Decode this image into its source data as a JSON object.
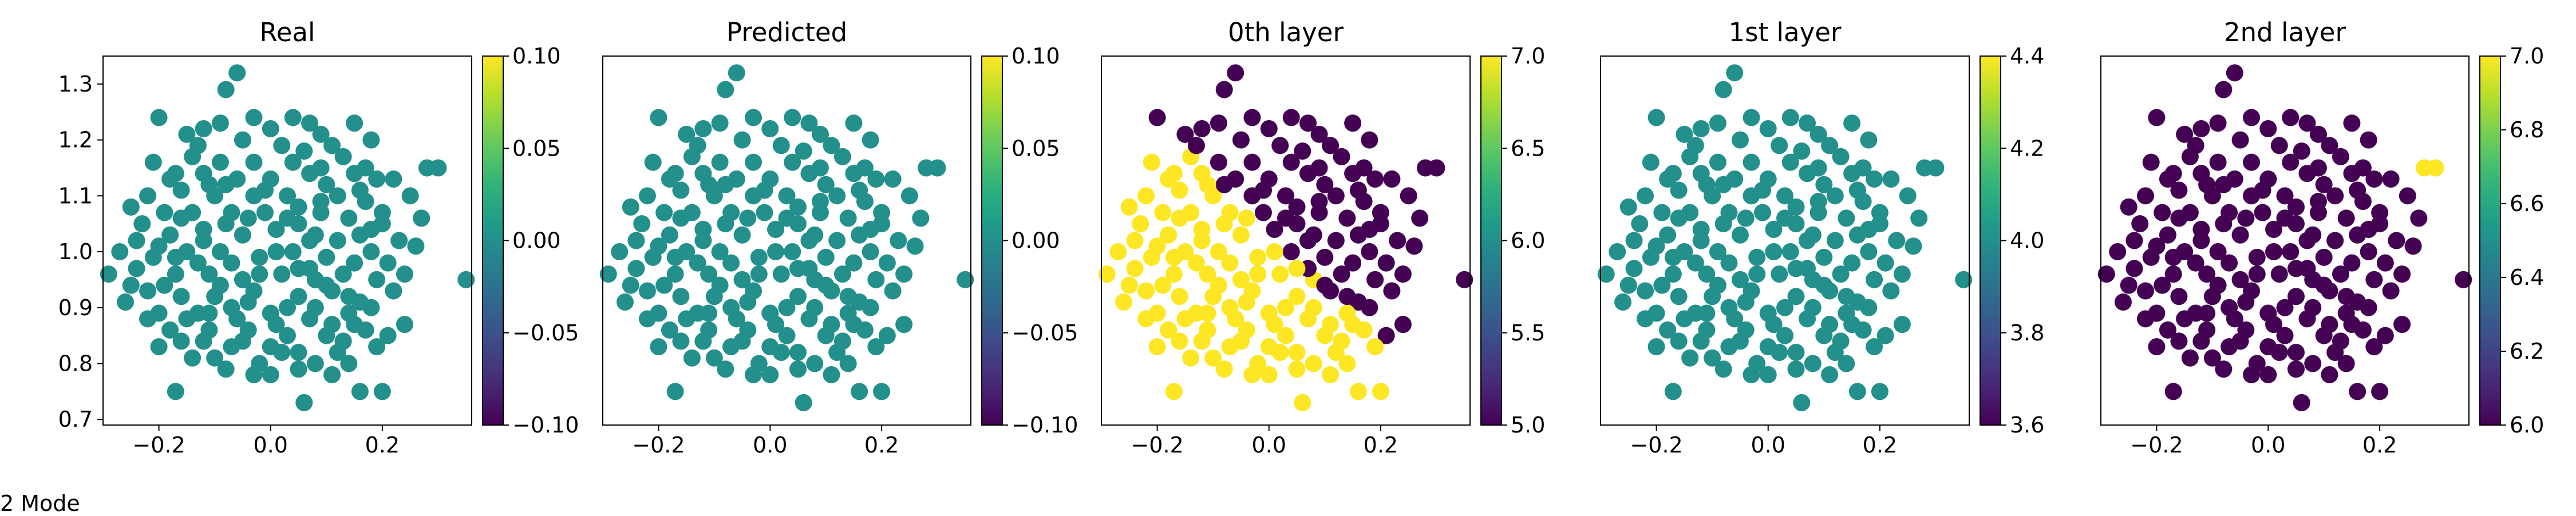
{
  "figure_caption": "2 Mode",
  "colors": {
    "viridis_dark": "#440154",
    "viridis_mid": "#21918c",
    "viridis_yellow": "#fde725",
    "axis": "#000000"
  },
  "chart_data": [
    {
      "type": "scatter",
      "title": "Real",
      "xlim": [
        -0.3,
        0.36
      ],
      "ylim": [
        0.69,
        1.35
      ],
      "xticks": [
        -0.2,
        0.0,
        0.2
      ],
      "xtick_labels": [
        "−0.2",
        "0.0",
        "0.2"
      ],
      "yticks": [
        0.7,
        0.8,
        0.9,
        1.0,
        1.1,
        1.2,
        1.3
      ],
      "ytick_labels": [
        "0.7",
        "0.8",
        "0.9",
        "1.0",
        "1.1",
        "1.2",
        "1.3"
      ],
      "colorbar": {
        "range": [
          -0.1,
          0.1
        ],
        "ticks": [
          -0.1,
          -0.05,
          0.0,
          0.05,
          0.1
        ],
        "tick_labels": [
          "−0.10",
          "−0.05",
          "0.00",
          "0.05",
          "0.10"
        ]
      },
      "coloring": "uniform",
      "points_value": 0.0
    },
    {
      "type": "scatter",
      "title": "Predicted",
      "xlim": [
        -0.3,
        0.36
      ],
      "ylim": [
        0.69,
        1.35
      ],
      "xticks": [
        -0.2,
        0.0,
        0.2
      ],
      "xtick_labels": [
        "−0.2",
        "0.0",
        "0.2"
      ],
      "yticks": [],
      "ytick_labels": [],
      "colorbar": {
        "range": [
          -0.1,
          0.1
        ],
        "ticks": [
          -0.1,
          -0.05,
          0.0,
          0.05,
          0.1
        ],
        "tick_labels": [
          "−0.10",
          "−0.05",
          "0.00",
          "0.05",
          "0.10"
        ]
      },
      "coloring": "uniform",
      "points_value": 0.0
    },
    {
      "type": "scatter",
      "title": "0th layer",
      "xlim": [
        -0.3,
        0.36
      ],
      "ylim": [
        0.69,
        1.35
      ],
      "xticks": [
        -0.2,
        0.0,
        0.2
      ],
      "xtick_labels": [
        "−0.2",
        "0.0",
        "0.2"
      ],
      "yticks": [],
      "ytick_labels": [],
      "colorbar": {
        "range": [
          5.0,
          7.0
        ],
        "ticks": [
          5.0,
          5.5,
          6.0,
          6.5,
          7.0
        ],
        "tick_labels": [
          "5.0",
          "5.5",
          "6.0",
          "6.5",
          "7.0"
        ]
      },
      "coloring": "split",
      "split_rule": "x + y > 1.03",
      "value_above": 5.0,
      "value_below": 7.0
    },
    {
      "type": "scatter",
      "title": "1st layer",
      "xlim": [
        -0.3,
        0.36
      ],
      "ylim": [
        0.69,
        1.35
      ],
      "xticks": [
        -0.2,
        0.0,
        0.2
      ],
      "xtick_labels": [
        "−0.2",
        "0.0",
        "0.2"
      ],
      "yticks": [],
      "ytick_labels": [],
      "colorbar": {
        "range": [
          3.6,
          4.4
        ],
        "ticks": [
          3.6,
          3.8,
          4.0,
          4.2,
          4.4
        ],
        "tick_labels": [
          "3.6",
          "3.8",
          "4.0",
          "4.2",
          "4.4"
        ]
      },
      "coloring": "uniform",
      "points_value": 4.0
    },
    {
      "type": "scatter",
      "title": "2nd layer",
      "xlim": [
        -0.3,
        0.36
      ],
      "ylim": [
        0.69,
        1.35
      ],
      "xticks": [
        -0.2,
        0.0,
        0.2
      ],
      "xtick_labels": [
        "−0.2",
        "0.0",
        "0.2"
      ],
      "yticks": [],
      "ytick_labels": [],
      "colorbar": {
        "range": [
          6.0,
          7.0
        ],
        "ticks": [
          6.0,
          6.2,
          6.4,
          6.6,
          6.8,
          7.0
        ],
        "tick_labels": [
          "6.0",
          "6.2",
          "6.4",
          "6.6",
          "6.8",
          "7.0"
        ]
      },
      "coloring": "highlight",
      "highlight_points": [
        [
          0.16,
          1.21
        ],
        [
          0.28,
          1.15
        ],
        [
          0.3,
          1.15
        ]
      ],
      "value_default": 6.0,
      "value_highlight": 7.0
    }
  ],
  "scatter_points": [
    [
      -0.06,
      1.32
    ],
    [
      -0.08,
      1.29
    ],
    [
      -0.2,
      1.24
    ],
    [
      -0.09,
      1.23
    ],
    [
      -0.03,
      1.24
    ],
    [
      0.04,
      1.24
    ],
    [
      0.07,
      1.23
    ],
    [
      0.15,
      1.23
    ],
    [
      -0.15,
      1.21
    ],
    [
      -0.12,
      1.22
    ],
    [
      0.0,
      1.22
    ],
    [
      0.09,
      1.21
    ],
    [
      0.18,
      1.2
    ],
    [
      -0.05,
      1.2
    ],
    [
      0.11,
      1.19
    ],
    [
      0.02,
      1.19
    ],
    [
      -0.21,
      1.16
    ],
    [
      -0.14,
      1.17
    ],
    [
      -0.09,
      1.16
    ],
    [
      0.04,
      1.16
    ],
    [
      0.13,
      1.17
    ],
    [
      0.17,
      1.15
    ],
    [
      0.28,
      1.15
    ],
    [
      0.3,
      1.15
    ],
    [
      -0.18,
      1.13
    ],
    [
      -0.12,
      1.14
    ],
    [
      -0.06,
      1.13
    ],
    [
      0.0,
      1.13
    ],
    [
      0.07,
      1.14
    ],
    [
      0.1,
      1.12
    ],
    [
      0.19,
      1.13
    ],
    [
      0.22,
      1.13
    ],
    [
      -0.25,
      1.08
    ],
    [
      -0.22,
      1.1
    ],
    [
      -0.16,
      1.11
    ],
    [
      -0.1,
      1.1
    ],
    [
      -0.03,
      1.1
    ],
    [
      0.03,
      1.1
    ],
    [
      0.12,
      1.1
    ],
    [
      0.17,
      1.09
    ],
    [
      0.25,
      1.1
    ],
    [
      0.27,
      1.06
    ],
    [
      -0.23,
      1.05
    ],
    [
      -0.19,
      1.07
    ],
    [
      -0.14,
      1.07
    ],
    [
      -0.07,
      1.07
    ],
    [
      0.05,
      1.08
    ],
    [
      0.09,
      1.07
    ],
    [
      0.14,
      1.06
    ],
    [
      0.2,
      1.05
    ],
    [
      -0.27,
      1.0
    ],
    [
      -0.24,
      1.02
    ],
    [
      -0.18,
      1.03
    ],
    [
      -0.12,
      1.04
    ],
    [
      -0.05,
      1.03
    ],
    [
      0.01,
      1.04
    ],
    [
      0.07,
      1.02
    ],
    [
      0.16,
      1.03
    ],
    [
      0.23,
      1.02
    ],
    [
      0.26,
      1.01
    ],
    [
      -0.21,
      0.99
    ],
    [
      -0.15,
      1.0
    ],
    [
      -0.09,
      1.0
    ],
    [
      -0.02,
      0.99
    ],
    [
      0.04,
      1.0
    ],
    [
      0.1,
      0.99
    ],
    [
      0.18,
      1.0
    ],
    [
      0.21,
      0.98
    ],
    [
      -0.29,
      0.96
    ],
    [
      -0.24,
      0.97
    ],
    [
      -0.17,
      0.96
    ],
    [
      -0.11,
      0.96
    ],
    [
      -0.05,
      0.95
    ],
    [
      0.02,
      0.96
    ],
    [
      0.08,
      0.95
    ],
    [
      0.13,
      0.96
    ],
    [
      0.19,
      0.95
    ],
    [
      0.35,
      0.95
    ],
    [
      -0.22,
      0.93
    ],
    [
      -0.16,
      0.92
    ],
    [
      -0.1,
      0.92
    ],
    [
      -0.03,
      0.93
    ],
    [
      0.05,
      0.92
    ],
    [
      0.11,
      0.93
    ],
    [
      0.16,
      0.91
    ],
    [
      0.22,
      0.93
    ],
    [
      -0.26,
      0.91
    ],
    [
      -0.2,
      0.89
    ],
    [
      -0.13,
      0.89
    ],
    [
      -0.07,
      0.9
    ],
    [
      0.0,
      0.89
    ],
    [
      0.07,
      0.88
    ],
    [
      0.14,
      0.89
    ],
    [
      0.24,
      0.87
    ],
    [
      -0.18,
      0.86
    ],
    [
      -0.11,
      0.86
    ],
    [
      -0.04,
      0.86
    ],
    [
      0.03,
      0.85
    ],
    [
      0.1,
      0.85
    ],
    [
      0.17,
      0.86
    ],
    [
      0.21,
      0.85
    ],
    [
      -0.2,
      0.83
    ],
    [
      -0.16,
      0.84
    ],
    [
      -0.12,
      0.84
    ],
    [
      -0.07,
      0.83
    ],
    [
      0.0,
      0.83
    ],
    [
      0.05,
      0.82
    ],
    [
      0.12,
      0.82
    ],
    [
      0.19,
      0.83
    ],
    [
      -0.1,
      0.81
    ],
    [
      -0.02,
      0.8
    ],
    [
      0.08,
      0.8
    ],
    [
      0.14,
      0.8
    ],
    [
      -0.08,
      0.79
    ],
    [
      0.0,
      0.78
    ],
    [
      0.05,
      0.79
    ],
    [
      0.11,
      0.78
    ],
    [
      -0.17,
      0.75
    ],
    [
      -0.03,
      0.78
    ],
    [
      0.16,
      0.75
    ],
    [
      0.2,
      0.75
    ],
    [
      0.06,
      0.73
    ],
    [
      -0.13,
      1.19
    ],
    [
      0.06,
      1.18
    ],
    [
      -0.17,
      1.14
    ],
    [
      0.15,
      1.14
    ],
    [
      -0.08,
      1.12
    ],
    [
      0.05,
      1.05
    ],
    [
      -0.01,
      1.07
    ],
    [
      -0.2,
      1.01
    ],
    [
      0.12,
      1.02
    ],
    [
      -0.13,
      0.98
    ],
    [
      0.08,
      1.03
    ],
    [
      -0.07,
      0.98
    ],
    [
      0.15,
      0.98
    ],
    [
      -0.19,
      0.94
    ],
    [
      0.1,
      0.94
    ],
    [
      -0.02,
      0.96
    ],
    [
      -0.15,
      0.88
    ],
    [
      0.03,
      0.9
    ],
    [
      0.18,
      0.9
    ],
    [
      -0.05,
      0.84
    ],
    [
      0.13,
      0.84
    ],
    [
      -0.14,
      0.81
    ],
    [
      0.02,
      0.82
    ],
    [
      0.09,
      1.15
    ],
    [
      -0.03,
      1.16
    ],
    [
      -0.11,
      1.12
    ],
    [
      0.2,
      1.07
    ],
    [
      -0.16,
      1.06
    ],
    [
      0.01,
      1.0
    ],
    [
      -0.25,
      0.94
    ],
    [
      0.07,
      0.97
    ],
    [
      -0.09,
      0.94
    ],
    [
      0.14,
      0.92
    ],
    [
      -0.06,
      0.88
    ],
    [
      0.11,
      0.87
    ],
    [
      -0.22,
      0.88
    ],
    [
      0.24,
      0.96
    ],
    [
      -0.01,
      1.11
    ],
    [
      0.16,
      1.11
    ],
    [
      -0.04,
      1.06
    ],
    [
      0.09,
      1.09
    ],
    [
      -0.12,
      1.02
    ],
    [
      0.03,
      1.06
    ],
    [
      0.18,
      1.04
    ],
    [
      -0.08,
      1.05
    ],
    [
      -0.17,
      0.99
    ],
    [
      0.05,
      0.97
    ],
    [
      -0.04,
      0.91
    ],
    [
      0.08,
      0.9
    ],
    [
      -0.11,
      0.89
    ],
    [
      0.01,
      0.87
    ],
    [
      0.15,
      0.87
    ]
  ]
}
